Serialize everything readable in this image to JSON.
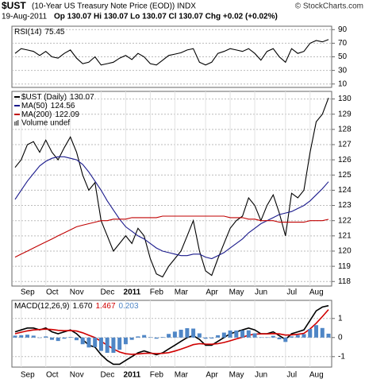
{
  "header": {
    "symbol": "$UST",
    "name": "(10-Year US Treasury Note Price (EOD)) INDX",
    "source": "© StockCharts.com",
    "date": "19-Aug-2011",
    "quote": "Op 130.07  Hi 130.07  Lo 130.07  Cl 130.07  Chg +0.02 (+0.02%)"
  },
  "chart_data": [
    {
      "type": "line",
      "ylim": [
        5,
        95
      ],
      "yticks": [
        90,
        70,
        50,
        30,
        10
      ],
      "series": [
        {
          "name": "RSI(14)",
          "color": "#000000",
          "values": [
            55,
            62,
            60,
            58,
            52,
            58,
            50,
            48,
            55,
            60,
            48,
            40,
            42,
            50,
            38,
            40,
            42,
            48,
            52,
            46,
            55,
            50,
            40,
            38,
            45,
            52,
            54,
            56,
            60,
            62,
            42,
            38,
            42,
            55,
            58,
            62,
            60,
            58,
            62,
            55,
            45,
            58,
            62,
            50,
            42,
            62,
            55,
            58,
            70,
            74,
            72,
            75.45
          ]
        }
      ]
    },
    {
      "type": "line",
      "ylim": [
        117.7,
        130.5
      ],
      "yticks": [
        118,
        119,
        120,
        121,
        122,
        123,
        124,
        125,
        126,
        127,
        128,
        129,
        130
      ],
      "volume_note": "Volume undef",
      "categories": [
        null,
        "Sep",
        null,
        null,
        null,
        "Oct",
        null,
        null,
        null,
        "Nov",
        null,
        null,
        null,
        null,
        "Dec",
        null,
        null,
        null,
        "2011",
        null,
        null,
        null,
        "Feb",
        null,
        null,
        null,
        "Mar",
        null,
        null,
        null,
        null,
        "Apr",
        null,
        null,
        null,
        "May",
        null,
        null,
        null,
        "Jun",
        null,
        null,
        null,
        null,
        "Jul",
        null,
        null,
        null,
        "Aug",
        null,
        null,
        null
      ],
      "series": [
        {
          "name": "$UST (Daily)",
          "color": "#000000",
          "values": [
            125.5,
            126,
            127,
            127.2,
            126.5,
            127.3,
            126.5,
            126,
            126.8,
            127.5,
            126.5,
            125,
            124,
            124.5,
            122,
            121,
            120,
            120.5,
            121,
            120.5,
            121.5,
            121,
            119.5,
            118.5,
            118.3,
            119,
            119.5,
            120,
            121,
            122,
            120,
            118.7,
            118.4,
            119.5,
            120.5,
            121.5,
            122,
            122.3,
            123.5,
            123,
            122,
            123,
            123.7,
            122.5,
            121,
            123.8,
            123.5,
            124,
            126.5,
            128.5,
            129,
            130.07
          ]
        },
        {
          "name": "MA(50)",
          "color": "#1a1a8c",
          "values": [
            123.4,
            124,
            124.6,
            125.1,
            125.6,
            125.9,
            126.1,
            126.2,
            126.2,
            126.1,
            126,
            125.7,
            125.2,
            124.6,
            124,
            123.3,
            122.7,
            122.1,
            121.6,
            121.3,
            121,
            120.8,
            120.5,
            120.2,
            120,
            119.9,
            119.8,
            119.7,
            119.7,
            119.8,
            119.8,
            119.6,
            119.5,
            119.7,
            119.9,
            120.2,
            120.5,
            120.8,
            121.2,
            121.5,
            121.8,
            122,
            122.2,
            122.4,
            122.5,
            122.6,
            122.8,
            123,
            123.3,
            123.7,
            124.1,
            124.56
          ]
        },
        {
          "name": "MA(200)",
          "color": "#c00000",
          "values": [
            119.6,
            119.8,
            120,
            120.2,
            120.4,
            120.6,
            120.8,
            121,
            121.2,
            121.4,
            121.6,
            121.7,
            121.8,
            121.9,
            122,
            122,
            122.1,
            122.1,
            122.1,
            122.2,
            122.2,
            122.2,
            122.2,
            122.2,
            122.3,
            122.3,
            122.3,
            122.3,
            122.3,
            122.3,
            122.3,
            122.3,
            122.3,
            122.3,
            122.3,
            122.2,
            122.2,
            122.2,
            122.1,
            122.1,
            122,
            122,
            122,
            121.9,
            121.9,
            121.9,
            121.9,
            121.9,
            122,
            122,
            122,
            122.09
          ]
        }
      ]
    },
    {
      "type": "line",
      "title": "MACD(12,26,9)",
      "ylim": [
        -1.55,
        1.95
      ],
      "yticks": [
        1,
        0,
        -1
      ],
      "categories": [
        null,
        "Sep",
        null,
        null,
        null,
        "Oct",
        null,
        null,
        null,
        "Nov",
        null,
        null,
        null,
        null,
        "Dec",
        null,
        null,
        null,
        "2011",
        null,
        null,
        null,
        "Feb",
        null,
        null,
        null,
        "Mar",
        null,
        null,
        null,
        null,
        "Apr",
        null,
        null,
        null,
        "May",
        null,
        null,
        null,
        "Jun",
        null,
        null,
        null,
        null,
        "Jul",
        null,
        null,
        null,
        "Aug",
        null,
        null,
        null
      ],
      "series": [
        {
          "color": "#000000",
          "last_label": "1.670",
          "values": [
            0.3,
            0.4,
            0.5,
            0.5,
            0.4,
            0.5,
            0.3,
            0.2,
            0.3,
            0.4,
            0.2,
            -0.1,
            -0.4,
            -0.5,
            -0.9,
            -1.2,
            -1.4,
            -1.4,
            -1.2,
            -1,
            -0.8,
            -0.7,
            -0.8,
            -0.9,
            -0.8,
            -0.6,
            -0.4,
            -0.2,
            0,
            0.1,
            -0.1,
            -0.4,
            -0.4,
            -0.2,
            0,
            0.2,
            0.3,
            0.4,
            0.5,
            0.4,
            0.2,
            0.2,
            0.3,
            0.1,
            -0.1,
            0.2,
            0.3,
            0.4,
            0.9,
            1.4,
            1.6,
            1.67
          ]
        },
        {
          "color": "#d00000",
          "last_label": "1.467",
          "values": [
            0.2,
            0.28,
            0.35,
            0.4,
            0.42,
            0.44,
            0.42,
            0.38,
            0.36,
            0.37,
            0.34,
            0.25,
            0.12,
            0,
            -0.2,
            -0.4,
            -0.6,
            -0.76,
            -0.85,
            -0.88,
            -0.86,
            -0.83,
            -0.82,
            -0.84,
            -0.83,
            -0.79,
            -0.71,
            -0.61,
            -0.49,
            -0.37,
            -0.32,
            -0.34,
            -0.35,
            -0.32,
            -0.26,
            -0.17,
            -0.07,
            0.02,
            0.12,
            0.18,
            0.19,
            0.19,
            0.21,
            0.19,
            0.13,
            0.14,
            0.17,
            0.22,
            0.45,
            0.75,
            1.1,
            1.467
          ]
        },
        {
          "type": "bar",
          "color": "#4f86c6",
          "last_label": "0.203",
          "values": [
            0.1,
            0.12,
            0.15,
            0.1,
            -0.02,
            0.06,
            -0.12,
            -0.18,
            -0.06,
            0.03,
            -0.14,
            -0.35,
            -0.52,
            -0.5,
            -0.7,
            -0.8,
            -0.8,
            -0.64,
            -0.35,
            -0.12,
            0.06,
            0.13,
            0.02,
            -0.06,
            0.03,
            0.19,
            0.31,
            0.41,
            0.49,
            0.47,
            0.22,
            -0.06,
            -0.05,
            0.12,
            0.26,
            0.37,
            0.37,
            0.38,
            0.38,
            0.22,
            0.01,
            0.01,
            0.09,
            -0.09,
            -0.23,
            0.06,
            0.13,
            0.18,
            0.45,
            0.65,
            0.5,
            0.203
          ]
        }
      ]
    }
  ]
}
